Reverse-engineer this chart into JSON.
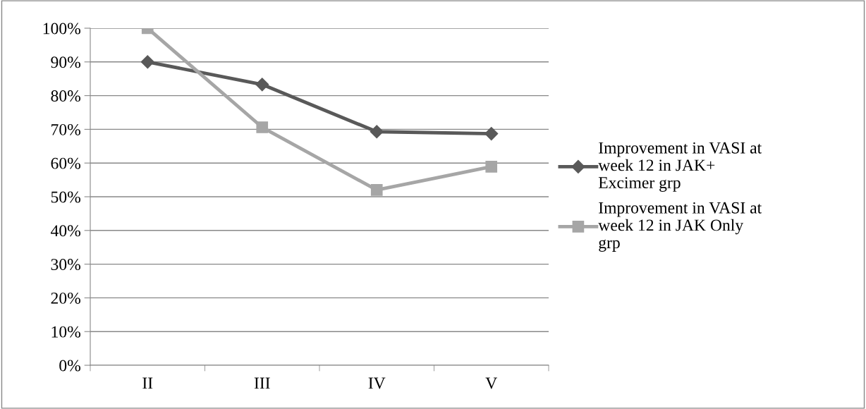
{
  "chart_data": {
    "type": "line",
    "categories": [
      "II",
      "III",
      "IV",
      "V"
    ],
    "series": [
      {
        "name": "Improvement in VASI at week 12 in JAK+ Excimer grp",
        "color": "#595959",
        "marker": "diamond",
        "values": [
          90,
          83.3,
          69.3,
          68.7
        ]
      },
      {
        "name": "Improvement in VASI at week 12 in JAK Only grp",
        "color": "#a6a6a6",
        "marker": "square",
        "values": [
          100,
          70.6,
          52,
          58.9
        ]
      }
    ],
    "ylim": [
      0,
      100
    ],
    "yticks": [
      {
        "value": 0,
        "label": "0%"
      },
      {
        "value": 10,
        "label": "10%"
      },
      {
        "value": 20,
        "label": "20%"
      },
      {
        "value": 30,
        "label": "30%"
      },
      {
        "value": 40,
        "label": "40%"
      },
      {
        "value": 50,
        "label": "50%"
      },
      {
        "value": 60,
        "label": "60%"
      },
      {
        "value": 70,
        "label": "70%"
      },
      {
        "value": 80,
        "label": "80%"
      },
      {
        "value": 90,
        "label": "90%"
      },
      {
        "value": 100,
        "label": "100%"
      }
    ],
    "grid": "y",
    "legend": "right",
    "line_style": "solid"
  }
}
